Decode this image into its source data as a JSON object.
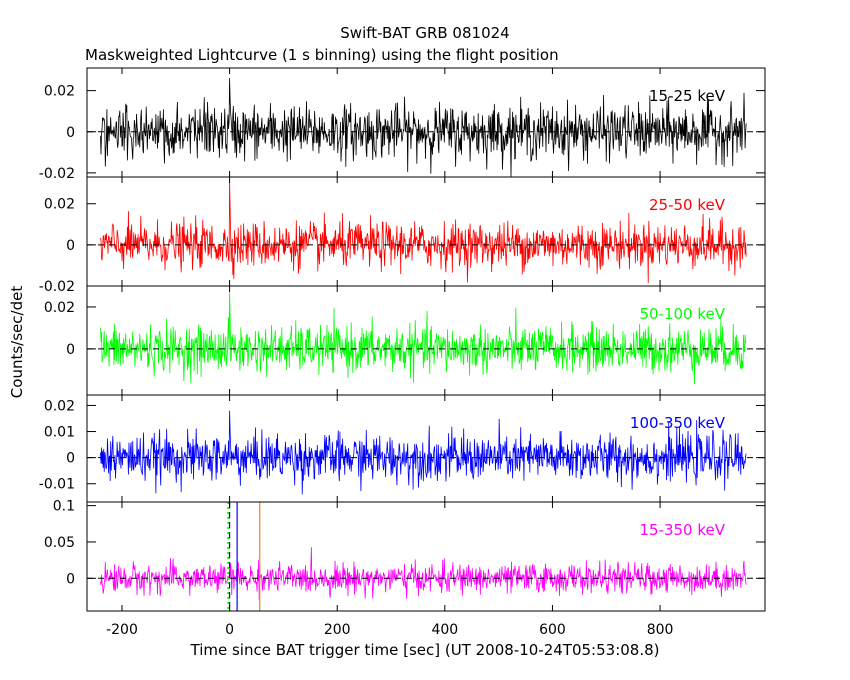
{
  "figure": {
    "title": "Swift-BAT GRB 081024",
    "subtitle": "Maskweighted Lightcurve (1 s binning) using the flight position",
    "xlabel": "Time since BAT trigger time [sec] (UT 2008-10-24T05:53:08.8)",
    "ylabel": "Counts/sec/det"
  },
  "chart_data": [
    {
      "type": "line",
      "label": "15-25 keV",
      "color": "#000000",
      "x_range": [
        -240,
        960
      ],
      "xlim": [
        -265,
        995
      ],
      "ylim": [
        -0.022,
        0.031
      ],
      "yticks": [
        -0.02,
        0,
        0.02
      ],
      "ytick_labels": [
        "-0.02",
        "0",
        "0.02"
      ],
      "noise_sigma": 0.0065,
      "spikes": [
        {
          "t": 0,
          "value": 0.026
        },
        {
          "t": 1,
          "value": 0.015
        }
      ],
      "zero_line": true
    },
    {
      "type": "line",
      "label": "25-50 keV",
      "color": "#ff0000",
      "x_range": [
        -240,
        960
      ],
      "xlim": [
        -265,
        995
      ],
      "ylim": [
        -0.02,
        0.033
      ],
      "yticks": [
        -0.02,
        0,
        0.02
      ],
      "ytick_labels": [
        "-0.02",
        "0",
        "0.02"
      ],
      "noise_sigma": 0.0055,
      "spikes": [
        {
          "t": 0,
          "value": 0.031
        },
        {
          "t": 1,
          "value": 0.018
        }
      ],
      "zero_line": true
    },
    {
      "type": "line",
      "label": "50-100 keV",
      "color": "#00ff00",
      "x_range": [
        -240,
        960
      ],
      "xlim": [
        -265,
        995
      ],
      "ylim": [
        -0.022,
        0.03
      ],
      "yticks": [
        0,
        0.02
      ],
      "ytick_labels": [
        "0",
        "0.02"
      ],
      "noise_sigma": 0.0055,
      "spikes": [
        {
          "t": 0,
          "value": 0.027
        },
        {
          "t": 1,
          "value": 0.015
        }
      ],
      "zero_line": true
    },
    {
      "type": "line",
      "label": "100-350 keV",
      "color": "#0000ff",
      "x_range": [
        -240,
        960
      ],
      "xlim": [
        -265,
        995
      ],
      "ylim": [
        -0.017,
        0.024
      ],
      "yticks": [
        -0.01,
        0,
        0.01,
        0.02
      ],
      "ytick_labels": [
        "-0.01",
        "0",
        "0.01",
        "0.02"
      ],
      "noise_sigma": 0.0045,
      "spikes": [
        {
          "t": 0,
          "value": 0.018
        },
        {
          "t": 1,
          "value": 0.01
        }
      ],
      "zero_line": true
    },
    {
      "type": "line",
      "label": "15-350 keV",
      "color": "#ff00ff",
      "x_range": [
        -240,
        960
      ],
      "xlim": [
        -265,
        995
      ],
      "ylim": [
        -0.045,
        0.105
      ],
      "yticks": [
        0,
        0.05,
        0.1
      ],
      "ytick_labels": [
        "0",
        "0.05",
        "0.1"
      ],
      "xticks": [
        -200,
        0,
        200,
        400,
        600,
        800
      ],
      "xtick_labels": [
        "-200",
        "0",
        "200",
        "400",
        "600",
        "800"
      ],
      "noise_sigma": 0.01,
      "spikes": [
        {
          "t": 0,
          "value": 0.02
        }
      ],
      "zero_line": true,
      "vertical_lines": [
        {
          "x": -2,
          "color": "#00ff00",
          "style": "dotted"
        },
        {
          "x": 0,
          "color": "#0000ff",
          "style": "dashed"
        },
        {
          "x": 14,
          "color": "#0000ff",
          "style": "solid"
        },
        {
          "x": 56,
          "color": "#ff8000",
          "style": "solid"
        }
      ]
    }
  ]
}
